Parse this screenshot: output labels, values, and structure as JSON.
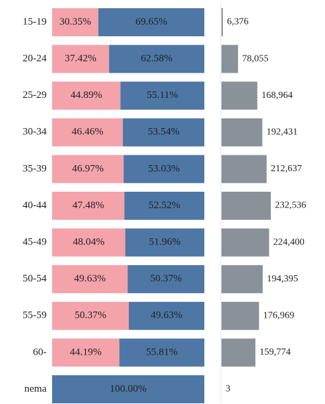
{
  "chart_data": [
    {
      "type": "stacked_bar_h",
      "categories": [
        "15-19",
        "20-24",
        "25-29",
        "30-34",
        "35-39",
        "40-44",
        "45-49",
        "50-54",
        "55-59",
        "60-",
        "nema"
      ],
      "series": [
        {
          "color": "#f4a3ab",
          "values": [
            30.35,
            37.42,
            44.89,
            46.46,
            46.97,
            47.48,
            48.04,
            49.63,
            50.37,
            44.19,
            0
          ],
          "value_labels": [
            "30.35%",
            "37.42%",
            "44.89%",
            "46.46%",
            "46.97%",
            "47.48%",
            "48.04%",
            "49.63%",
            "50.37%",
            "44.19%",
            null
          ]
        },
        {
          "color": "#4e77a5",
          "values": [
            69.65,
            62.58,
            55.11,
            53.54,
            53.03,
            52.52,
            51.96,
            50.37,
            49.63,
            55.81,
            100
          ],
          "value_labels": [
            "69.65%",
            "62.58%",
            "55.11%",
            "53.54%",
            "53.03%",
            "52.52%",
            "51.96%",
            "50.37%",
            "49.63%",
            "55.81%",
            "100.00%"
          ]
        }
      ]
    },
    {
      "type": "bar_h",
      "color": "#8a9198",
      "values": [
        6376,
        78055,
        168964,
        192431,
        212637,
        232536,
        224400,
        194395,
        176969,
        159774,
        3
      ],
      "value_labels": [
        "6,376",
        "78,055",
        "168,964",
        "192,431",
        "212,637",
        "232,536",
        "224,400",
        "194,395",
        "176,969",
        "159,774",
        "3"
      ]
    }
  ]
}
